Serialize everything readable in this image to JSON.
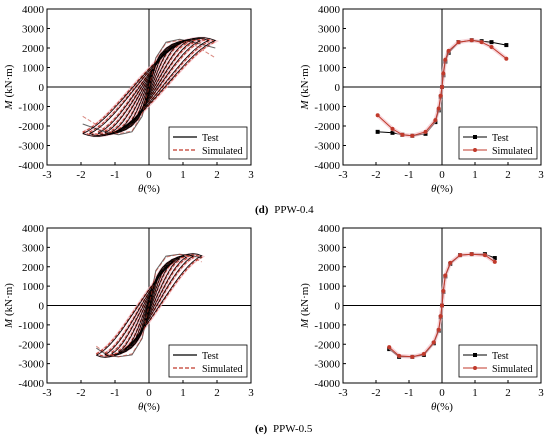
{
  "captions": [
    {
      "letter": "(d)",
      "text": "PPW-0.4"
    },
    {
      "letter": "(e)",
      "text": "PPW-0.5"
    }
  ],
  "colors": {
    "test": "#000000",
    "simulated": "#c0392b",
    "band": "#f2b8c0"
  },
  "chart_data": [
    {
      "id": "d-hysteresis",
      "type": "line",
      "ylabel": "M (kN·m)",
      "xlabel": "θ(%)",
      "xlim": [
        -3,
        3
      ],
      "ylim": [
        -4000,
        4000
      ],
      "xticks": [
        -3,
        -2,
        -1,
        0,
        1,
        2,
        3
      ],
      "yticks": [
        -4000,
        -3000,
        -2000,
        -1000,
        0,
        1000,
        2000,
        3000,
        4000
      ],
      "legend": {
        "position": "bottom-right",
        "entries": [
          "Test",
          "Simulated"
        ]
      },
      "loops": {
        "amplitudes": [
          0.15,
          0.3,
          0.5,
          0.7,
          0.9,
          1.1,
          1.3,
          1.5,
          1.75,
          1.95
        ],
        "peak_moment": 2400,
        "residual": 900
      },
      "series": [
        {
          "name": "Test",
          "style": "solid",
          "x": [
            -1.95,
            -1.3,
            -0.9,
            -0.5,
            -0.2,
            0,
            0.2,
            0.5,
            0.9,
            1.3,
            1.95
          ],
          "y": [
            -1900,
            -2300,
            -2450,
            -2300,
            -1500,
            0,
            1500,
            2300,
            2450,
            2300,
            2000
          ]
        },
        {
          "name": "Simulated",
          "style": "dashed",
          "x": [
            -1.95,
            -1.3,
            -0.9,
            -0.5,
            -0.2,
            0,
            0.2,
            0.5,
            0.9,
            1.3,
            1.95
          ],
          "y": [
            -1500,
            -2200,
            -2400,
            -2250,
            -1400,
            0,
            1450,
            2250,
            2400,
            2200,
            1500
          ]
        }
      ]
    },
    {
      "id": "d-skeleton",
      "type": "line",
      "ylabel": "M (kN·m)",
      "xlabel": "θ(%)",
      "xlim": [
        -3,
        3
      ],
      "ylim": [
        -4000,
        4000
      ],
      "xticks": [
        -3,
        -2,
        -1,
        0,
        1,
        2,
        3
      ],
      "yticks": [
        -4000,
        -3000,
        -2000,
        -1000,
        0,
        1000,
        2000,
        3000,
        4000
      ],
      "legend": {
        "position": "bottom-right",
        "entries": [
          "Test",
          "Simulated"
        ]
      },
      "series": [
        {
          "name": "Test",
          "marker": "square",
          "x": [
            -1.95,
            -1.5,
            -1.2,
            -0.9,
            -0.5,
            -0.2,
            -0.1,
            -0.04,
            0,
            0.04,
            0.1,
            0.2,
            0.5,
            0.9,
            1.2,
            1.5,
            1.95
          ],
          "y": [
            -2300,
            -2350,
            -2450,
            -2500,
            -2400,
            -1800,
            -1200,
            -500,
            0,
            600,
            1300,
            1750,
            2300,
            2400,
            2350,
            2300,
            2150
          ]
        },
        {
          "name": "Simulated",
          "marker": "circle",
          "x": [
            -1.95,
            -1.5,
            -1.2,
            -0.9,
            -0.5,
            -0.2,
            -0.1,
            -0.04,
            0,
            0.04,
            0.1,
            0.2,
            0.5,
            0.9,
            1.2,
            1.5,
            1.95
          ],
          "y": [
            -1450,
            -2150,
            -2450,
            -2500,
            -2300,
            -1700,
            -1100,
            -450,
            0,
            700,
            1400,
            1850,
            2300,
            2400,
            2300,
            2050,
            1450
          ]
        }
      ]
    },
    {
      "id": "e-hysteresis",
      "type": "line",
      "ylabel": "M (kN·m)",
      "xlabel": "θ(%)",
      "xlim": [
        -3,
        3
      ],
      "ylim": [
        -4000,
        4000
      ],
      "xticks": [
        -3,
        -2,
        -1,
        0,
        1,
        2,
        3
      ],
      "yticks": [
        -4000,
        -3000,
        -2000,
        -1000,
        0,
        1000,
        2000,
        3000,
        4000
      ],
      "legend": {
        "position": "bottom-right",
        "entries": [
          "Test",
          "Simulated"
        ]
      },
      "loops": {
        "amplitudes": [
          0.12,
          0.25,
          0.4,
          0.55,
          0.7,
          0.9,
          1.1,
          1.3,
          1.55
        ],
        "peak_moment": 2600,
        "residual": 800
      },
      "series": [
        {
          "name": "Test",
          "style": "solid",
          "x": [
            -1.55,
            -1.2,
            -0.9,
            -0.5,
            -0.2,
            0,
            0.2,
            0.5,
            0.9,
            1.2,
            1.55
          ],
          "y": [
            -2200,
            -2600,
            -2650,
            -2550,
            -1700,
            0,
            1800,
            2550,
            2650,
            2600,
            2450
          ]
        },
        {
          "name": "Simulated",
          "style": "dashed",
          "x": [
            -1.55,
            -1.2,
            -0.9,
            -0.5,
            -0.2,
            0,
            0.2,
            0.5,
            0.9,
            1.2,
            1.55
          ],
          "y": [
            -2100,
            -2550,
            -2650,
            -2500,
            -1650,
            0,
            1750,
            2500,
            2650,
            2550,
            2250
          ]
        }
      ]
    },
    {
      "id": "e-skeleton",
      "type": "line",
      "ylabel": "M (kN·m)",
      "xlabel": "θ(%)",
      "xlim": [
        -3,
        3
      ],
      "ylim": [
        -4000,
        4000
      ],
      "xticks": [
        -3,
        -2,
        -1,
        0,
        1,
        2,
        3
      ],
      "yticks": [
        -4000,
        -3000,
        -2000,
        -1000,
        0,
        1000,
        2000,
        3000,
        4000
      ],
      "legend": {
        "position": "bottom-right",
        "entries": [
          "Test",
          "Simulated"
        ]
      },
      "series": [
        {
          "name": "Test",
          "marker": "square",
          "x": [
            -1.6,
            -1.3,
            -0.9,
            -0.55,
            -0.25,
            -0.1,
            -0.04,
            0,
            0.04,
            0.1,
            0.25,
            0.55,
            0.9,
            1.3,
            1.6
          ],
          "y": [
            -2250,
            -2650,
            -2650,
            -2550,
            -1950,
            -1300,
            -600,
            0,
            700,
            1500,
            2150,
            2600,
            2650,
            2650,
            2450
          ]
        },
        {
          "name": "Simulated",
          "marker": "circle",
          "x": [
            -1.6,
            -1.3,
            -0.9,
            -0.55,
            -0.25,
            -0.1,
            -0.04,
            0,
            0.04,
            0.1,
            0.25,
            0.55,
            0.9,
            1.3,
            1.6
          ],
          "y": [
            -2150,
            -2600,
            -2650,
            -2500,
            -1900,
            -1250,
            -550,
            0,
            750,
            1550,
            2200,
            2600,
            2650,
            2600,
            2250
          ]
        }
      ]
    }
  ]
}
